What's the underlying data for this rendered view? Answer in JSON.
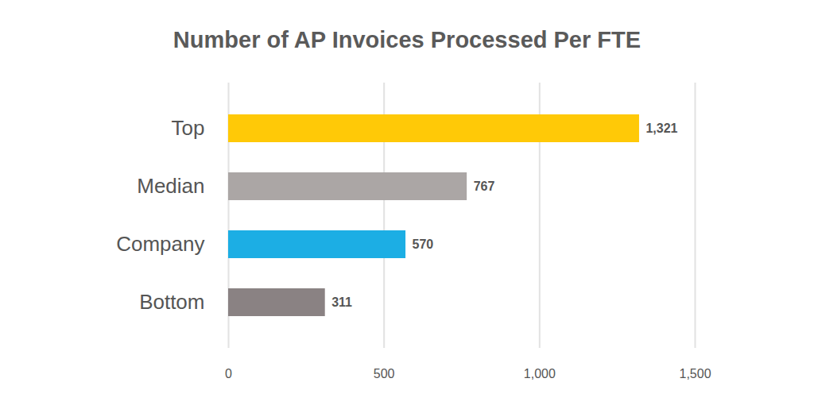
{
  "chart_data": {
    "type": "bar",
    "orientation": "horizontal",
    "title": "Number of AP Invoices Processed Per FTE",
    "categories": [
      "Top",
      "Median",
      "Company",
      "Bottom"
    ],
    "values": [
      1321,
      767,
      570,
      311
    ],
    "value_labels": [
      "1,321",
      "767",
      "570",
      "311"
    ],
    "colors": [
      "#ffc907",
      "#aba6a5",
      "#1caee4",
      "#8a8283"
    ],
    "xlim": [
      0,
      1500
    ],
    "xticks": [
      0,
      500,
      {
        "value": 1000,
        "label": "1,000"
      },
      {
        "value": 1500,
        "label": "1,500"
      }
    ],
    "grid": true,
    "data_labels": true
  }
}
